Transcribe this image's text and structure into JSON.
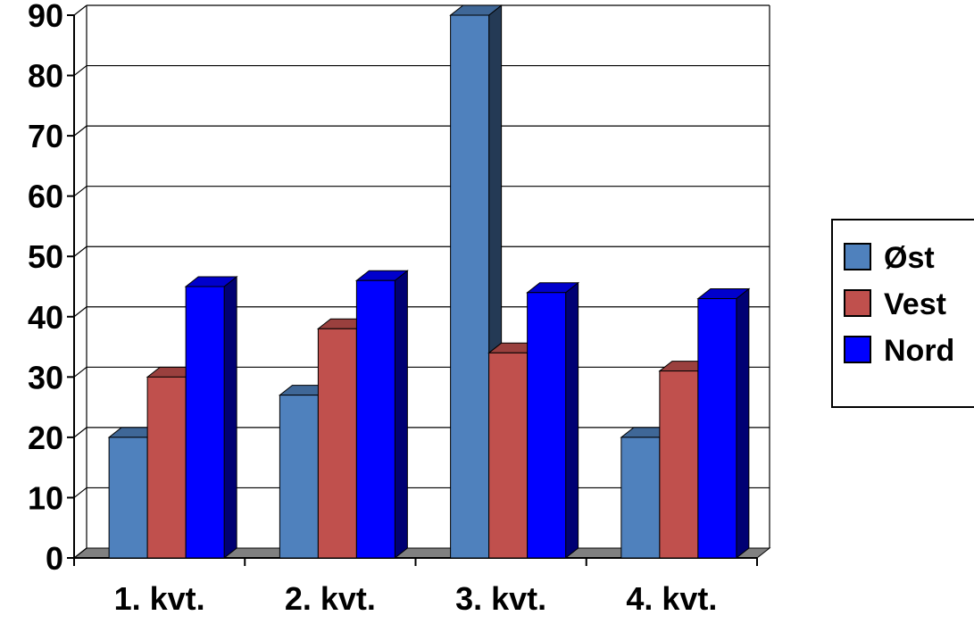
{
  "chart_data": {
    "type": "bar",
    "categories": [
      "1. kvt.",
      "2. kvt.",
      "3. kvt.",
      "4. kvt."
    ],
    "series": [
      {
        "name": "Øst",
        "values": [
          20,
          27,
          90,
          20
        ],
        "color": "#4f81bd"
      },
      {
        "name": "Vest",
        "values": [
          30,
          38,
          34,
          31
        ],
        "color": "#c0504d"
      },
      {
        "name": "Nord",
        "values": [
          45,
          46,
          44,
          43
        ],
        "color": "#0000ff"
      }
    ],
    "ylim": [
      0,
      90
    ],
    "yticks": [
      0,
      10,
      20,
      30,
      40,
      50,
      60,
      70,
      80,
      90
    ],
    "grid": true,
    "three_d": true,
    "legend_position": "right"
  }
}
